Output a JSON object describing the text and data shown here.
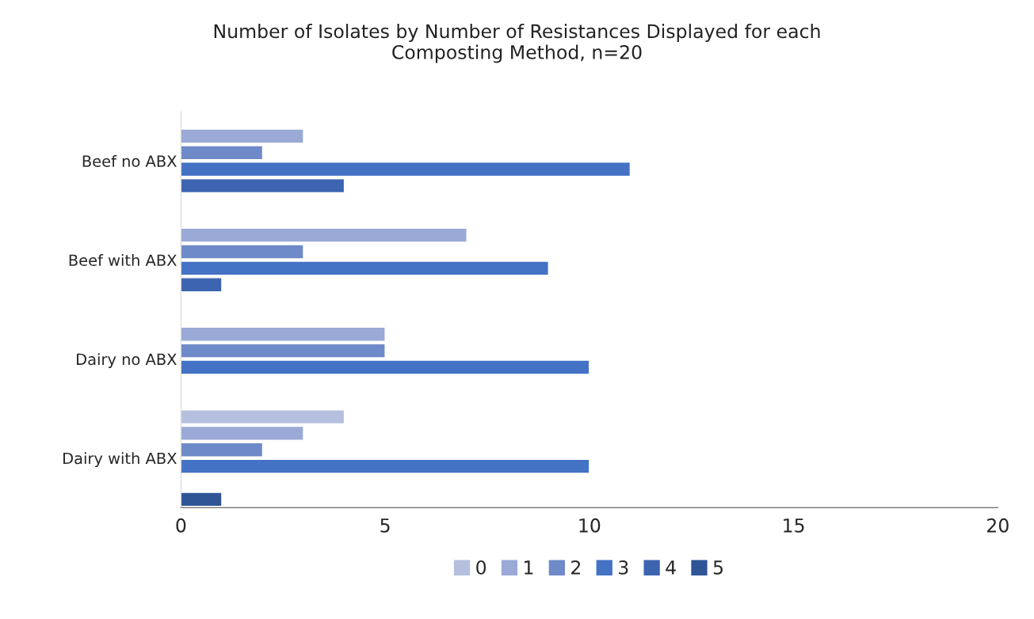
{
  "chart_data": {
    "type": "bar",
    "orientation": "horizontal",
    "title": "Number of Isolates by Number of Resistances Displayed for each\nComposting Method, n=20",
    "categories": [
      "Beef no ABX",
      "Beef with ABX",
      "Dairy no ABX",
      "Dairy with ABX"
    ],
    "series": [
      {
        "name": "0",
        "color": "#b4c0de",
        "values": [
          0,
          0,
          0,
          4
        ]
      },
      {
        "name": "1",
        "color": "#9aa9d6",
        "values": [
          3,
          7,
          5,
          3
        ]
      },
      {
        "name": "2",
        "color": "#6f8ac8",
        "values": [
          2,
          3,
          5,
          2
        ]
      },
      {
        "name": "3",
        "color": "#4472c4",
        "values": [
          11,
          9,
          10,
          10
        ]
      },
      {
        "name": "4",
        "color": "#3d64b0",
        "values": [
          4,
          1,
          0,
          0
        ]
      },
      {
        "name": "5",
        "color": "#2f5597",
        "values": [
          0,
          0,
          0,
          1
        ]
      }
    ],
    "xlim": [
      0,
      20
    ],
    "xticks": [
      0,
      5,
      10,
      15,
      20
    ],
    "grid": false,
    "legend": "bottom"
  }
}
